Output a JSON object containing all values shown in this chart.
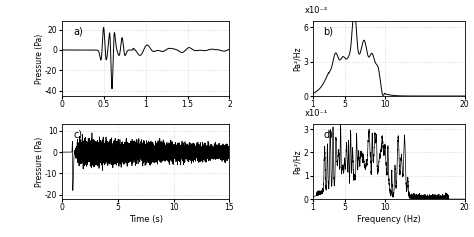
{
  "fig_width": 4.74,
  "fig_height": 2.37,
  "dpi": 100,
  "background_color": "#ffffff",
  "panels": {
    "a": {
      "label": "a)",
      "xlabel": "",
      "ylabel": "Pressure (Pa)",
      "xlim": [
        0,
        2
      ],
      "ylim": [
        -45,
        28
      ],
      "yticks": [
        -40,
        -20,
        0,
        20
      ],
      "xticks": [
        0,
        0.5,
        1,
        1.5,
        2
      ],
      "xticklabels": [
        "0",
        "0.5",
        "1",
        "1.5",
        "2"
      ]
    },
    "b": {
      "label": "b)",
      "xlabel": "",
      "ylabel": "Pa²/Hz",
      "xlim": [
        1,
        20
      ],
      "ylim": [
        0,
        0.065
      ],
      "yticks": [
        0,
        0.03,
        0.06
      ],
      "yticklabels": [
        "0",
        "3",
        "6"
      ],
      "xticks": [
        1,
        5,
        10,
        20
      ],
      "xticklabels": [
        "1",
        "5",
        "10",
        "20"
      ],
      "scale_label": "x10⁻²"
    },
    "c": {
      "label": "c)",
      "xlabel": "Time (s)",
      "ylabel": "Pressure (Pa)",
      "xlim": [
        0,
        15
      ],
      "ylim": [
        -22,
        13
      ],
      "yticks": [
        -20,
        -10,
        0,
        10
      ],
      "xticks": [
        0,
        5,
        10,
        15
      ],
      "xticklabels": [
        "0",
        "5",
        "10",
        "15"
      ]
    },
    "d": {
      "label": "d)",
      "xlabel": "Frequency (Hz)",
      "ylabel": "Pa²/Hz",
      "xlim": [
        1,
        20
      ],
      "ylim": [
        0,
        0.32
      ],
      "yticks": [
        0,
        0.1,
        0.2,
        0.3
      ],
      "yticklabels": [
        "0",
        "1",
        "2",
        "3"
      ],
      "xticks": [
        1,
        5,
        10,
        20
      ],
      "xticklabels": [
        "1",
        "5",
        "10",
        "20"
      ],
      "scale_label": "x10⁻¹"
    }
  },
  "line_color": "#000000",
  "grid_color": "#c8c8c8",
  "grid_linestyle": ":"
}
